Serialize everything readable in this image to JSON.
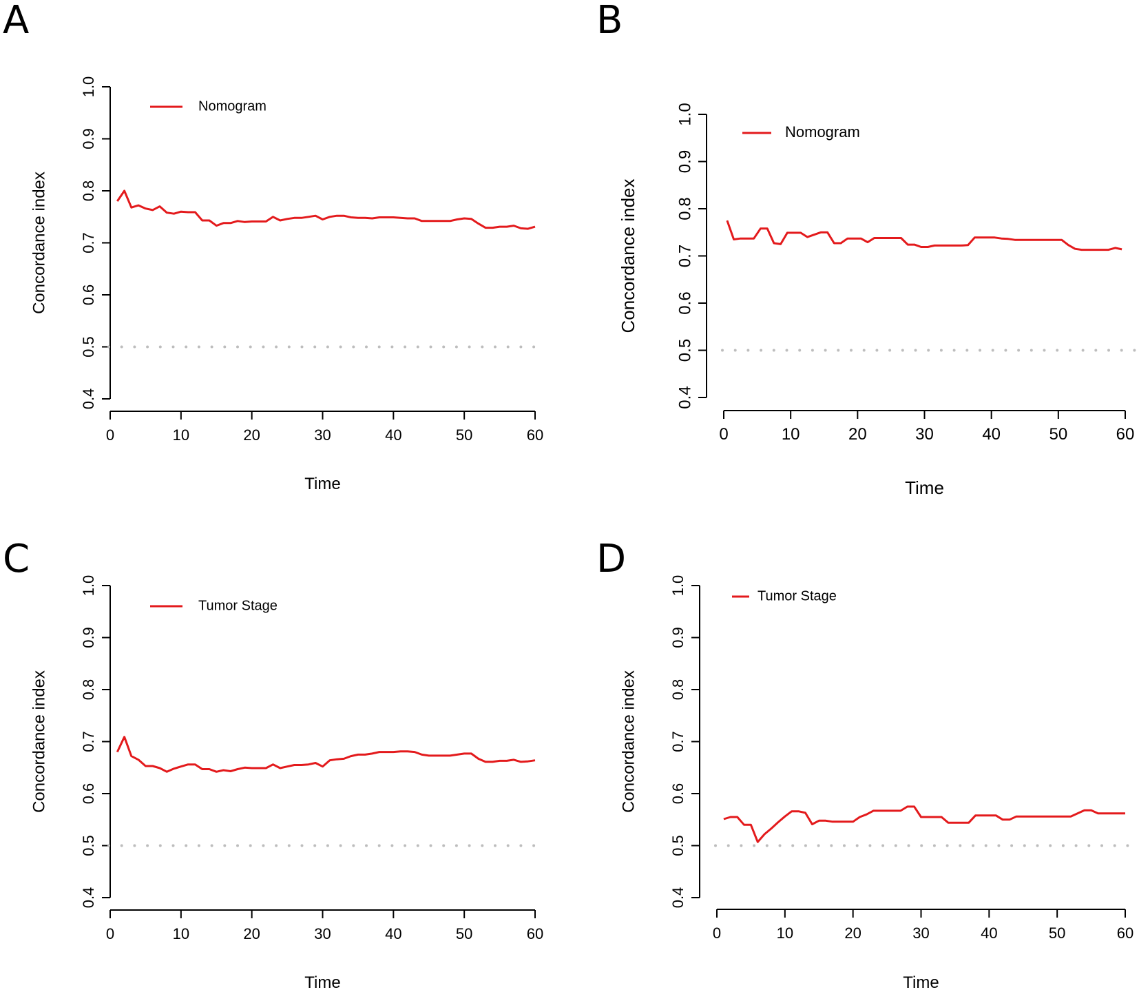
{
  "figure": {
    "panels": [
      "A",
      "B",
      "C",
      "D"
    ]
  },
  "colors": {
    "line": "#e31a1c",
    "reference": "#bdbdbd",
    "axis": "#000000"
  },
  "chart_data": [
    {
      "panel": "A",
      "type": "line",
      "xlabel": "Time",
      "ylabel": "Concordance index",
      "xlim": [
        0,
        60
      ],
      "ylim": [
        0.4,
        1.0
      ],
      "xticks": [
        "0",
        "10",
        "20",
        "30",
        "40",
        "50",
        "60"
      ],
      "yticks": [
        "0.4",
        "0.5",
        "0.6",
        "0.7",
        "0.8",
        "0.9",
        "1.0"
      ],
      "reference_line": 0.5,
      "legend": "Nomogram",
      "legend_position": "top-left",
      "series": [
        {
          "name": "Nomogram",
          "x": [
            1,
            2,
            3,
            4,
            5,
            6,
            7,
            8,
            9,
            10,
            11,
            12,
            13,
            14,
            15,
            16,
            17,
            18,
            19,
            20,
            21,
            22,
            23,
            24,
            25,
            26,
            27,
            28,
            29,
            30,
            31,
            32,
            33,
            34,
            35,
            36,
            37,
            38,
            39,
            40,
            41,
            42,
            43,
            44,
            45,
            46,
            47,
            48,
            49,
            50,
            51,
            52,
            53,
            54,
            55,
            56,
            57,
            58,
            59,
            60
          ],
          "y": [
            0.78,
            0.8,
            0.768,
            0.772,
            0.766,
            0.763,
            0.77,
            0.758,
            0.756,
            0.76,
            0.759,
            0.759,
            0.743,
            0.743,
            0.733,
            0.738,
            0.738,
            0.742,
            0.74,
            0.741,
            0.741,
            0.741,
            0.75,
            0.743,
            0.746,
            0.748,
            0.748,
            0.75,
            0.752,
            0.745,
            0.75,
            0.752,
            0.752,
            0.749,
            0.748,
            0.748,
            0.747,
            0.749,
            0.749,
            0.749,
            0.748,
            0.747,
            0.747,
            0.742,
            0.742,
            0.742,
            0.742,
            0.742,
            0.745,
            0.747,
            0.746,
            0.737,
            0.729,
            0.729,
            0.731,
            0.731,
            0.733,
            0.728,
            0.727,
            0.731
          ]
        }
      ]
    },
    {
      "panel": "B",
      "type": "line",
      "xlabel": "Time",
      "ylabel": "Concordance index",
      "xlim": [
        0,
        60
      ],
      "ylim": [
        0.4,
        1.0
      ],
      "xticks": [
        "0",
        "10",
        "20",
        "30",
        "40",
        "50",
        "60"
      ],
      "yticks": [
        "0.4",
        "0.5",
        "0.6",
        "0.7",
        "0.8",
        "0.9",
        "1.0"
      ],
      "reference_line": 0.5,
      "legend": "Nomogram",
      "legend_position": "top-left",
      "series": [
        {
          "name": "Nomogram",
          "x": [
            0.5,
            1.5,
            2.5,
            3.5,
            4.5,
            5.5,
            6.5,
            7.5,
            8.5,
            9.5,
            10.5,
            11.5,
            12.5,
            13.5,
            14.5,
            15.5,
            16.5,
            17.5,
            18.5,
            19.5,
            20.5,
            21.5,
            22.5,
            23.5,
            24.5,
            25.5,
            26.5,
            27.5,
            28.5,
            29.5,
            30.5,
            31.5,
            32.5,
            33.5,
            34.5,
            35.5,
            36.5,
            37.5,
            38.5,
            39.5,
            40.5,
            41.5,
            42.5,
            43.5,
            44.5,
            45.5,
            46.5,
            47.5,
            48.5,
            49.5,
            50.5,
            51.5,
            52.5,
            53.5,
            54.5,
            55.5,
            56.5,
            57.5,
            58.5,
            59.5
          ],
          "y": [
            0.775,
            0.735,
            0.737,
            0.737,
            0.737,
            0.758,
            0.758,
            0.727,
            0.725,
            0.749,
            0.749,
            0.749,
            0.74,
            0.745,
            0.75,
            0.75,
            0.727,
            0.727,
            0.737,
            0.737,
            0.737,
            0.729,
            0.738,
            0.738,
            0.738,
            0.738,
            0.738,
            0.724,
            0.724,
            0.719,
            0.719,
            0.722,
            0.722,
            0.722,
            0.722,
            0.722,
            0.723,
            0.739,
            0.739,
            0.739,
            0.739,
            0.737,
            0.736,
            0.734,
            0.734,
            0.734,
            0.734,
            0.734,
            0.734,
            0.734,
            0.734,
            0.723,
            0.715,
            0.713,
            0.713,
            0.713,
            0.713,
            0.713,
            0.717,
            0.714
          ]
        }
      ]
    },
    {
      "panel": "C",
      "type": "line",
      "xlabel": "Time",
      "ylabel": "Concordance index",
      "xlim": [
        0,
        60
      ],
      "ylim": [
        0.4,
        1.0
      ],
      "xticks": [
        "0",
        "10",
        "20",
        "30",
        "40",
        "50",
        "60"
      ],
      "yticks": [
        "0.4",
        "0.5",
        "0.6",
        "0.7",
        "0.8",
        "0.9",
        "1.0"
      ],
      "reference_line": 0.5,
      "legend": "Tumor Stage",
      "legend_position": "top-left",
      "series": [
        {
          "name": "Tumor Stage",
          "x": [
            1,
            2,
            3,
            4,
            5,
            6,
            7,
            8,
            9,
            10,
            11,
            12,
            13,
            14,
            15,
            16,
            17,
            18,
            19,
            20,
            21,
            22,
            23,
            24,
            25,
            26,
            27,
            28,
            29,
            30,
            31,
            32,
            33,
            34,
            35,
            36,
            37,
            38,
            39,
            40,
            41,
            42,
            43,
            44,
            45,
            46,
            47,
            48,
            49,
            50,
            51,
            52,
            53,
            54,
            55,
            56,
            57,
            58,
            59,
            60
          ],
          "y": [
            0.68,
            0.709,
            0.672,
            0.665,
            0.653,
            0.653,
            0.649,
            0.642,
            0.648,
            0.652,
            0.656,
            0.656,
            0.647,
            0.647,
            0.642,
            0.645,
            0.643,
            0.647,
            0.65,
            0.649,
            0.649,
            0.649,
            0.656,
            0.649,
            0.652,
            0.655,
            0.655,
            0.656,
            0.659,
            0.652,
            0.664,
            0.666,
            0.667,
            0.672,
            0.675,
            0.675,
            0.677,
            0.68,
            0.68,
            0.68,
            0.681,
            0.681,
            0.68,
            0.675,
            0.673,
            0.673,
            0.673,
            0.673,
            0.675,
            0.677,
            0.677,
            0.667,
            0.661,
            0.661,
            0.663,
            0.663,
            0.665,
            0.661,
            0.662,
            0.664
          ]
        }
      ]
    },
    {
      "panel": "D",
      "type": "line",
      "xlabel": "Time",
      "ylabel": "Concordance index",
      "xlim": [
        0,
        60
      ],
      "ylim": [
        0.4,
        1.0
      ],
      "xticks": [
        "0",
        "10",
        "20",
        "30",
        "40",
        "50",
        "60"
      ],
      "yticks": [
        "0.4",
        "0.5",
        "0.6",
        "0.7",
        "0.8",
        "0.9",
        "1.0"
      ],
      "reference_line": 0.5,
      "legend": "Tumor Stage",
      "legend_position": "top-left",
      "series": [
        {
          "name": "Tumor Stage",
          "x": [
            1,
            2,
            3,
            4,
            5,
            6,
            7,
            8,
            9,
            10,
            11,
            12,
            13,
            14,
            15,
            16,
            17,
            18,
            19,
            20,
            21,
            22,
            23,
            24,
            25,
            26,
            27,
            28,
            29,
            30,
            31,
            32,
            33,
            34,
            35,
            36,
            37,
            38,
            39,
            40,
            41,
            42,
            43,
            44,
            45,
            46,
            47,
            48,
            49,
            50,
            51,
            52,
            53,
            54,
            55,
            56,
            57,
            58,
            59,
            60
          ],
          "y": [
            0.551,
            0.555,
            0.555,
            0.54,
            0.54,
            0.507,
            0.522,
            0.533,
            0.545,
            0.556,
            0.566,
            0.566,
            0.563,
            0.541,
            0.548,
            0.548,
            0.546,
            0.546,
            0.546,
            0.546,
            0.555,
            0.56,
            0.567,
            0.567,
            0.567,
            0.567,
            0.567,
            0.575,
            0.575,
            0.555,
            0.555,
            0.555,
            0.555,
            0.544,
            0.544,
            0.544,
            0.544,
            0.558,
            0.558,
            0.558,
            0.558,
            0.55,
            0.55,
            0.556,
            0.556,
            0.556,
            0.556,
            0.556,
            0.556,
            0.556,
            0.556,
            0.556,
            0.562,
            0.568,
            0.568,
            0.562,
            0.562,
            0.562,
            0.562,
            0.562
          ]
        }
      ]
    }
  ]
}
